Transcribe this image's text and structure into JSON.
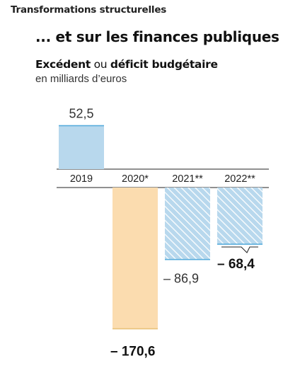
{
  "header": {
    "kicker": "Transformations structurelles",
    "headline": "... et sur les finances publiques"
  },
  "chart_data": {
    "type": "bar",
    "title_bold_1": "Excédent",
    "title_regular": " ou ",
    "title_bold_2": "déficit budgétaire",
    "subtitle": "en milliards d’euros",
    "categories": [
      "2019",
      "2020*",
      "2021**",
      "2022**"
    ],
    "values": [
      52.5,
      -170.6,
      -86.9,
      -68.4
    ],
    "value_labels": [
      "52,5",
      "– 170,6",
      "– 86,9",
      "– 68,4"
    ],
    "label_bold": [
      false,
      true,
      false,
      true
    ],
    "bar_styles": [
      "solid-blue",
      "solid-yellow",
      "hatched-blue",
      "hatched-blue"
    ],
    "colors": {
      "blue_fill": "#b8d8ed",
      "blue_line": "#5aaedc",
      "yellow_fill": "#fbdcaf",
      "yellow_line": "#e8c179",
      "hatch": "#ffffff",
      "axis": "#222222"
    }
  }
}
